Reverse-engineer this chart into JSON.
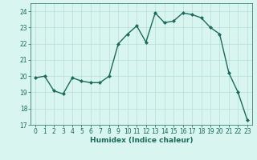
{
  "x": [
    0,
    1,
    2,
    3,
    4,
    5,
    6,
    7,
    8,
    9,
    10,
    11,
    12,
    13,
    14,
    15,
    16,
    17,
    18,
    19,
    20,
    21,
    22,
    23
  ],
  "y": [
    19.9,
    20.0,
    19.1,
    18.9,
    19.9,
    19.7,
    19.6,
    19.6,
    20.0,
    22.0,
    22.6,
    23.1,
    22.1,
    23.9,
    23.3,
    23.4,
    23.9,
    23.8,
    23.6,
    23.0,
    22.6,
    20.2,
    19.0,
    17.3
  ],
  "line_color": "#1a6b5a",
  "marker": "D",
  "marker_size": 2,
  "bg_color": "#d8f5f0",
  "grid_color": "#b8ddd8",
  "xlabel": "Humidex (Indice chaleur)",
  "ylim": [
    17,
    24.5
  ],
  "xlim": [
    -0.5,
    23.5
  ],
  "yticks": [
    17,
    18,
    19,
    20,
    21,
    22,
    23,
    24
  ],
  "xticks": [
    0,
    1,
    2,
    3,
    4,
    5,
    6,
    7,
    8,
    9,
    10,
    11,
    12,
    13,
    14,
    15,
    16,
    17,
    18,
    19,
    20,
    21,
    22,
    23
  ],
  "xlabel_fontsize": 6.5,
  "tick_fontsize": 5.5,
  "line_width": 1.0
}
